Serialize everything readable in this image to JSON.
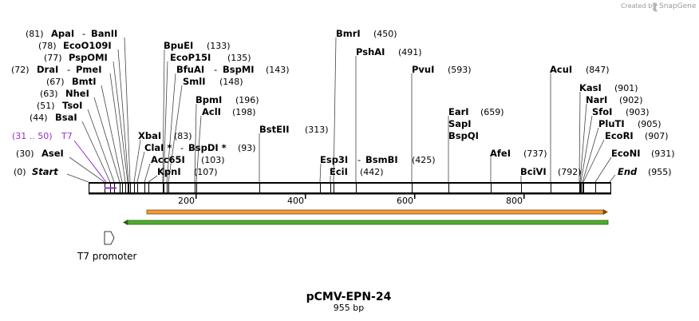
{
  "title": "pCMV-EPN-24",
  "length_label": "955 bp",
  "credit": {
    "prefix": "Created by",
    "brand": "SnapGene"
  },
  "ruler": {
    "ticks": [
      "200",
      "400",
      "600",
      "800"
    ]
  },
  "sites": [
    {
      "key": "apai",
      "name": "ApaI",
      "pos": "(81)",
      "pair": "BanII"
    },
    {
      "key": "eco0109i",
      "name": "EcoO109I",
      "pos": "(78)"
    },
    {
      "key": "pspomi",
      "name": "PspOMI",
      "pos": "(77)"
    },
    {
      "key": "drai",
      "name": "DraI",
      "pos": "(72)",
      "pair": "PmeI"
    },
    {
      "key": "bmti",
      "name": "BmtI",
      "pos": "(67)"
    },
    {
      "key": "nhei",
      "name": "NheI",
      "pos": "(63)"
    },
    {
      "key": "tsoi",
      "name": "TsoI",
      "pos": "(51)"
    },
    {
      "key": "bsai",
      "name": "BsaI",
      "pos": "(44)"
    },
    {
      "key": "t7",
      "name": "T7",
      "pos": "(31 .. 50)"
    },
    {
      "key": "asei",
      "name": "AseI",
      "pos": "(30)"
    },
    {
      "key": "start",
      "name": "Start",
      "pos": "(0)"
    },
    {
      "key": "bpuei",
      "name": "BpuEI",
      "pos": "(133)"
    },
    {
      "key": "ecop15i",
      "name": "EcoP15I",
      "pos": "(135)"
    },
    {
      "key": "bfuai",
      "name": "BfuAI",
      "pair": "BspMI",
      "pos": "(143)"
    },
    {
      "key": "smli",
      "name": "SmlI",
      "pos": "(148)"
    },
    {
      "key": "bpmi",
      "name": "BpmI",
      "pos": "(196)"
    },
    {
      "key": "acli",
      "name": "AclI",
      "pos": "(198)"
    },
    {
      "key": "xbai",
      "name": "XbaI",
      "pos": "(83)"
    },
    {
      "key": "clai",
      "name": "ClaI *",
      "pair": "BspDI *",
      "pos": "(93)"
    },
    {
      "key": "acc65i",
      "name": "Acc65I",
      "pos": "(103)"
    },
    {
      "key": "kpni",
      "name": "KpnI",
      "pos": "(107)"
    },
    {
      "key": "bsteii",
      "name": "BstEII",
      "pos": "(313)"
    },
    {
      "key": "bmri",
      "name": "BmrI",
      "pos": "(450)"
    },
    {
      "key": "pshai",
      "name": "PshAI",
      "pos": "(491)"
    },
    {
      "key": "esp3i",
      "name": "Esp3I",
      "pair": "BsmBI",
      "pos": "(425)"
    },
    {
      "key": "ecii",
      "name": "EciI",
      "pos": "(442)"
    },
    {
      "key": "pvui",
      "name": "PvuI",
      "pos": "(593)"
    },
    {
      "key": "eari",
      "name": "EarI",
      "pos": "(659)"
    },
    {
      "key": "sapi",
      "name": "SapI"
    },
    {
      "key": "bspqi",
      "name": "BspQI"
    },
    {
      "key": "afei",
      "name": "AfeI",
      "pos": "(737)"
    },
    {
      "key": "bcivi",
      "name": "BciVI",
      "pos": "(792)"
    },
    {
      "key": "acui",
      "name": "AcuI",
      "pos": "(847)"
    },
    {
      "key": "kasi",
      "name": "KasI",
      "pos": "(901)"
    },
    {
      "key": "nari",
      "name": "NarI",
      "pos": "(902)"
    },
    {
      "key": "sfoi",
      "name": "SfoI",
      "pos": "(903)"
    },
    {
      "key": "pluti",
      "name": "PluTI",
      "pos": "(905)"
    },
    {
      "key": "ecori",
      "name": "EcoRI",
      "pos": "(907)"
    },
    {
      "key": "econi",
      "name": "EcoNI",
      "pos": "(931)"
    },
    {
      "key": "end",
      "name": "End",
      "pos": "(955)"
    }
  ],
  "features": [
    {
      "key": "t7-promoter",
      "label": "T7 promoter"
    }
  ],
  "colors": {
    "t7": "#9b2fc9",
    "orange_arrow": "#f39c3b",
    "green_arrow": "#4caf2a",
    "backbone": "#000000"
  }
}
